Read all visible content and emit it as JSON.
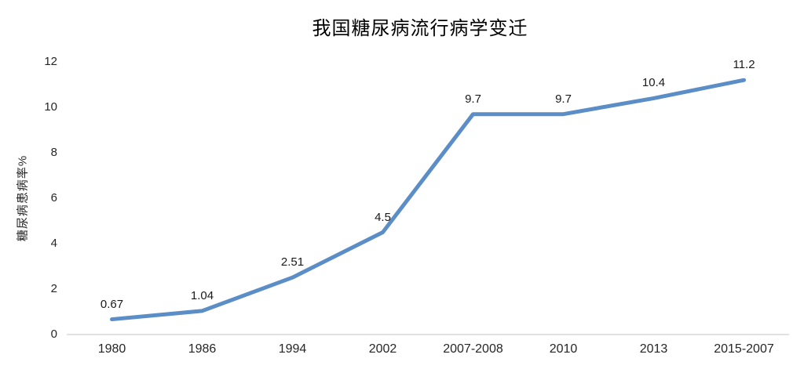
{
  "page": {
    "background_color": "#ffffff"
  },
  "chart_data": {
    "type": "line",
    "title": "我国糖尿病流行病学变迁",
    "xlabel": "",
    "ylabel": "糖尿病患病率%",
    "categories": [
      "1980",
      "1986",
      "1994",
      "2002",
      "2007-2008",
      "2010",
      "2013",
      "2015-2007"
    ],
    "values": [
      0.67,
      1.04,
      2.51,
      4.5,
      9.7,
      9.7,
      10.4,
      11.2
    ],
    "data_labels": [
      "0.67",
      "1.04",
      "2.51",
      "4.5",
      "9.7",
      "9.7",
      "10.4",
      "11.2"
    ],
    "yticks": [
      0,
      2,
      4,
      6,
      8,
      10,
      12
    ],
    "ylim": [
      0,
      12
    ],
    "grid": false,
    "legend": false,
    "line_color": "#5b8dc7",
    "axis_line_color": "#d9d9d9",
    "text_color": "#262626"
  }
}
